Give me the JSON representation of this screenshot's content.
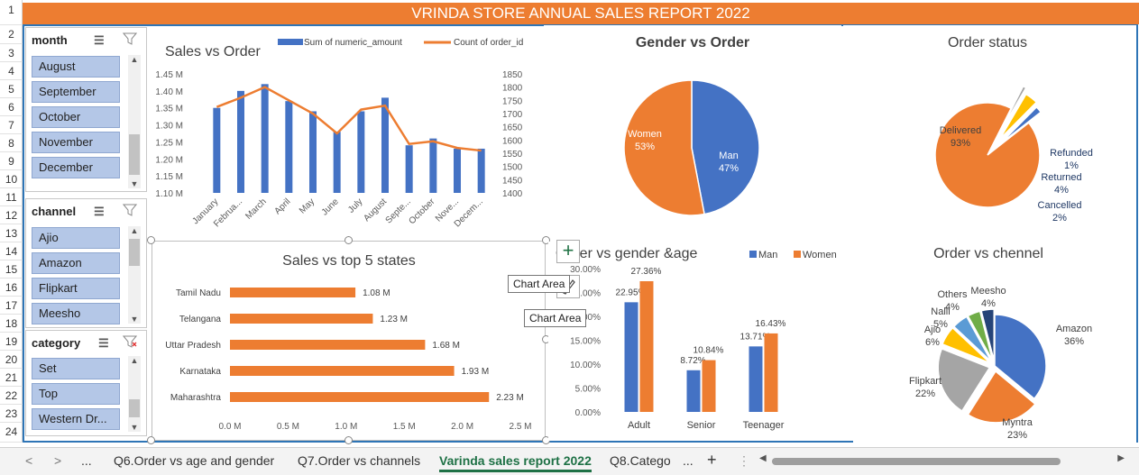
{
  "title": "VRINDA STORE  ANNUAL SALES REPORT 2022",
  "row_numbers": [
    "1",
    "2",
    "3",
    "4",
    "5",
    "6",
    "7",
    "8",
    "9",
    "10",
    "11",
    "12",
    "13",
    "14",
    "15",
    "16",
    "17",
    "18",
    "19",
    "20",
    "21",
    "22",
    "23",
    "24"
  ],
  "slicers": {
    "month": {
      "label": "month",
      "items": [
        "August",
        "September",
        "October",
        "November",
        "December"
      ]
    },
    "channel": {
      "label": "channel",
      "items": [
        "Ajio",
        "Amazon",
        "Flipkart",
        "Meesho"
      ]
    },
    "category": {
      "label": "category",
      "items": [
        "Set",
        "Top",
        "Western Dr..."
      ]
    }
  },
  "tooltips": {
    "chart_area_1": "Chart Area",
    "chart_area_2": "Chart Area"
  },
  "tabs": {
    "nav_prev": "<",
    "nav_next": ">",
    "more": "...",
    "t1": "Q6.Order vs age and gender",
    "t2": "Q7.Order vs channels",
    "t3": "Varinda sales report 2022",
    "t4": "Q8.Catego",
    "more2": "...",
    "add": "+",
    "menu": "⋮"
  },
  "chart_data": [
    {
      "type": "bar",
      "title": "Sales vs Order",
      "categories": [
        "January",
        "Februa...",
        "March",
        "April",
        "May",
        "June",
        "July",
        "August",
        "Septe...",
        "October",
        "Nove...",
        "Decem..."
      ],
      "series": [
        {
          "name": "Sum of numeric_amount",
          "type": "bar",
          "axis": "left",
          "values": [
            1.35,
            1.4,
            1.42,
            1.37,
            1.34,
            1.28,
            1.34,
            1.38,
            1.24,
            1.26,
            1.23,
            1.23
          ]
        },
        {
          "name": "Count of order_id",
          "type": "line",
          "axis": "right",
          "values": [
            1725,
            1760,
            1800,
            1750,
            1700,
            1625,
            1715,
            1730,
            1585,
            1595,
            1570,
            1560
          ]
        }
      ],
      "yticks_left": [
        "1.10 M",
        "1.15 M",
        "1.20 M",
        "1.25 M",
        "1.30 M",
        "1.35 M",
        "1.40 M",
        "1.45 M"
      ],
      "ylim_left": [
        1.1,
        1.45
      ],
      "yticks_right": [
        "1400",
        "1450",
        "1500",
        "1550",
        "1600",
        "1650",
        "1700",
        "1750",
        "1800",
        "1850"
      ],
      "ylim_right": [
        1400,
        1850
      ],
      "legend_position": "top",
      "colors": {
        "bar": "#4472c4",
        "line": "#ed7d31"
      }
    },
    {
      "type": "pie",
      "title": "Gender vs Order",
      "slices": [
        {
          "label": "Man",
          "pct": "47%",
          "value": 47,
          "color": "#4472c4"
        },
        {
          "label": "Women",
          "pct": "53%",
          "value": 53,
          "color": "#ed7d31"
        }
      ]
    },
    {
      "type": "pie",
      "title": "Order status",
      "slices": [
        {
          "label": "Delivered",
          "pct": "93%",
          "value": 93,
          "color": "#ed7d31"
        },
        {
          "label": "Refunded",
          "pct": "1%",
          "value": 1,
          "color": "#a5a5a5"
        },
        {
          "label": "Returned",
          "pct": "4%",
          "value": 4,
          "color": "#ffc000"
        },
        {
          "label": "Cancelled",
          "pct": "2%",
          "value": 2,
          "color": "#4472c4"
        }
      ]
    },
    {
      "type": "bar",
      "title": "Sales vs top 5 states",
      "orientation": "horizontal",
      "categories": [
        "Tamil Nadu",
        "Telangana",
        "Uttar Pradesh",
        "Karnataka",
        "Maharashtra"
      ],
      "values": [
        1.08,
        1.23,
        1.68,
        1.93,
        2.23
      ],
      "labels": [
        "1.08 M",
        "1.23 M",
        "1.68 M",
        "1.93 M",
        "2.23 M"
      ],
      "xticks": [
        "0.0 M",
        "0.5 M",
        "1.0 M",
        "1.5 M",
        "2.0 M",
        "2.5 M"
      ],
      "xlim": [
        0,
        2.5
      ],
      "color": "#ed7d31"
    },
    {
      "type": "bar",
      "title": "Order vs gender &age",
      "categories": [
        "Adult",
        "Senior",
        "Teenager"
      ],
      "series": [
        {
          "name": "Man",
          "values": [
            22.95,
            8.72,
            13.71
          ],
          "labels": [
            "22.95%",
            "8.72%",
            "13.71%"
          ],
          "color": "#4472c4"
        },
        {
          "name": "Women",
          "values": [
            27.36,
            10.84,
            16.43
          ],
          "labels": [
            "27.36%",
            "10.84%",
            "16.43%"
          ],
          "color": "#ed7d31"
        }
      ],
      "yticks": [
        "0.00%",
        "5.00%",
        "10.00%",
        "15.00%",
        "20.00%",
        "25.00%",
        "30.00%"
      ],
      "ylim": [
        0,
        30
      ],
      "legend_position": "top-right"
    },
    {
      "type": "pie",
      "title": "Order vs chennel",
      "slices": [
        {
          "label": "Amazon",
          "pct": "36%",
          "value": 36,
          "color": "#4472c4"
        },
        {
          "label": "Myntra",
          "pct": "23%",
          "value": 23,
          "color": "#ed7d31"
        },
        {
          "label": "Flipkart",
          "pct": "22%",
          "value": 22,
          "color": "#a5a5a5"
        },
        {
          "label": "Ajio",
          "pct": "6%",
          "value": 6,
          "color": "#ffc000"
        },
        {
          "label": "Nalli",
          "pct": "5%",
          "value": 5,
          "color": "#5b9bd5"
        },
        {
          "label": "Others",
          "pct": "4%",
          "value": 4,
          "color": "#70ad47"
        },
        {
          "label": "Meesho",
          "pct": "4%",
          "value": 4,
          "color": "#264478"
        }
      ]
    }
  ]
}
